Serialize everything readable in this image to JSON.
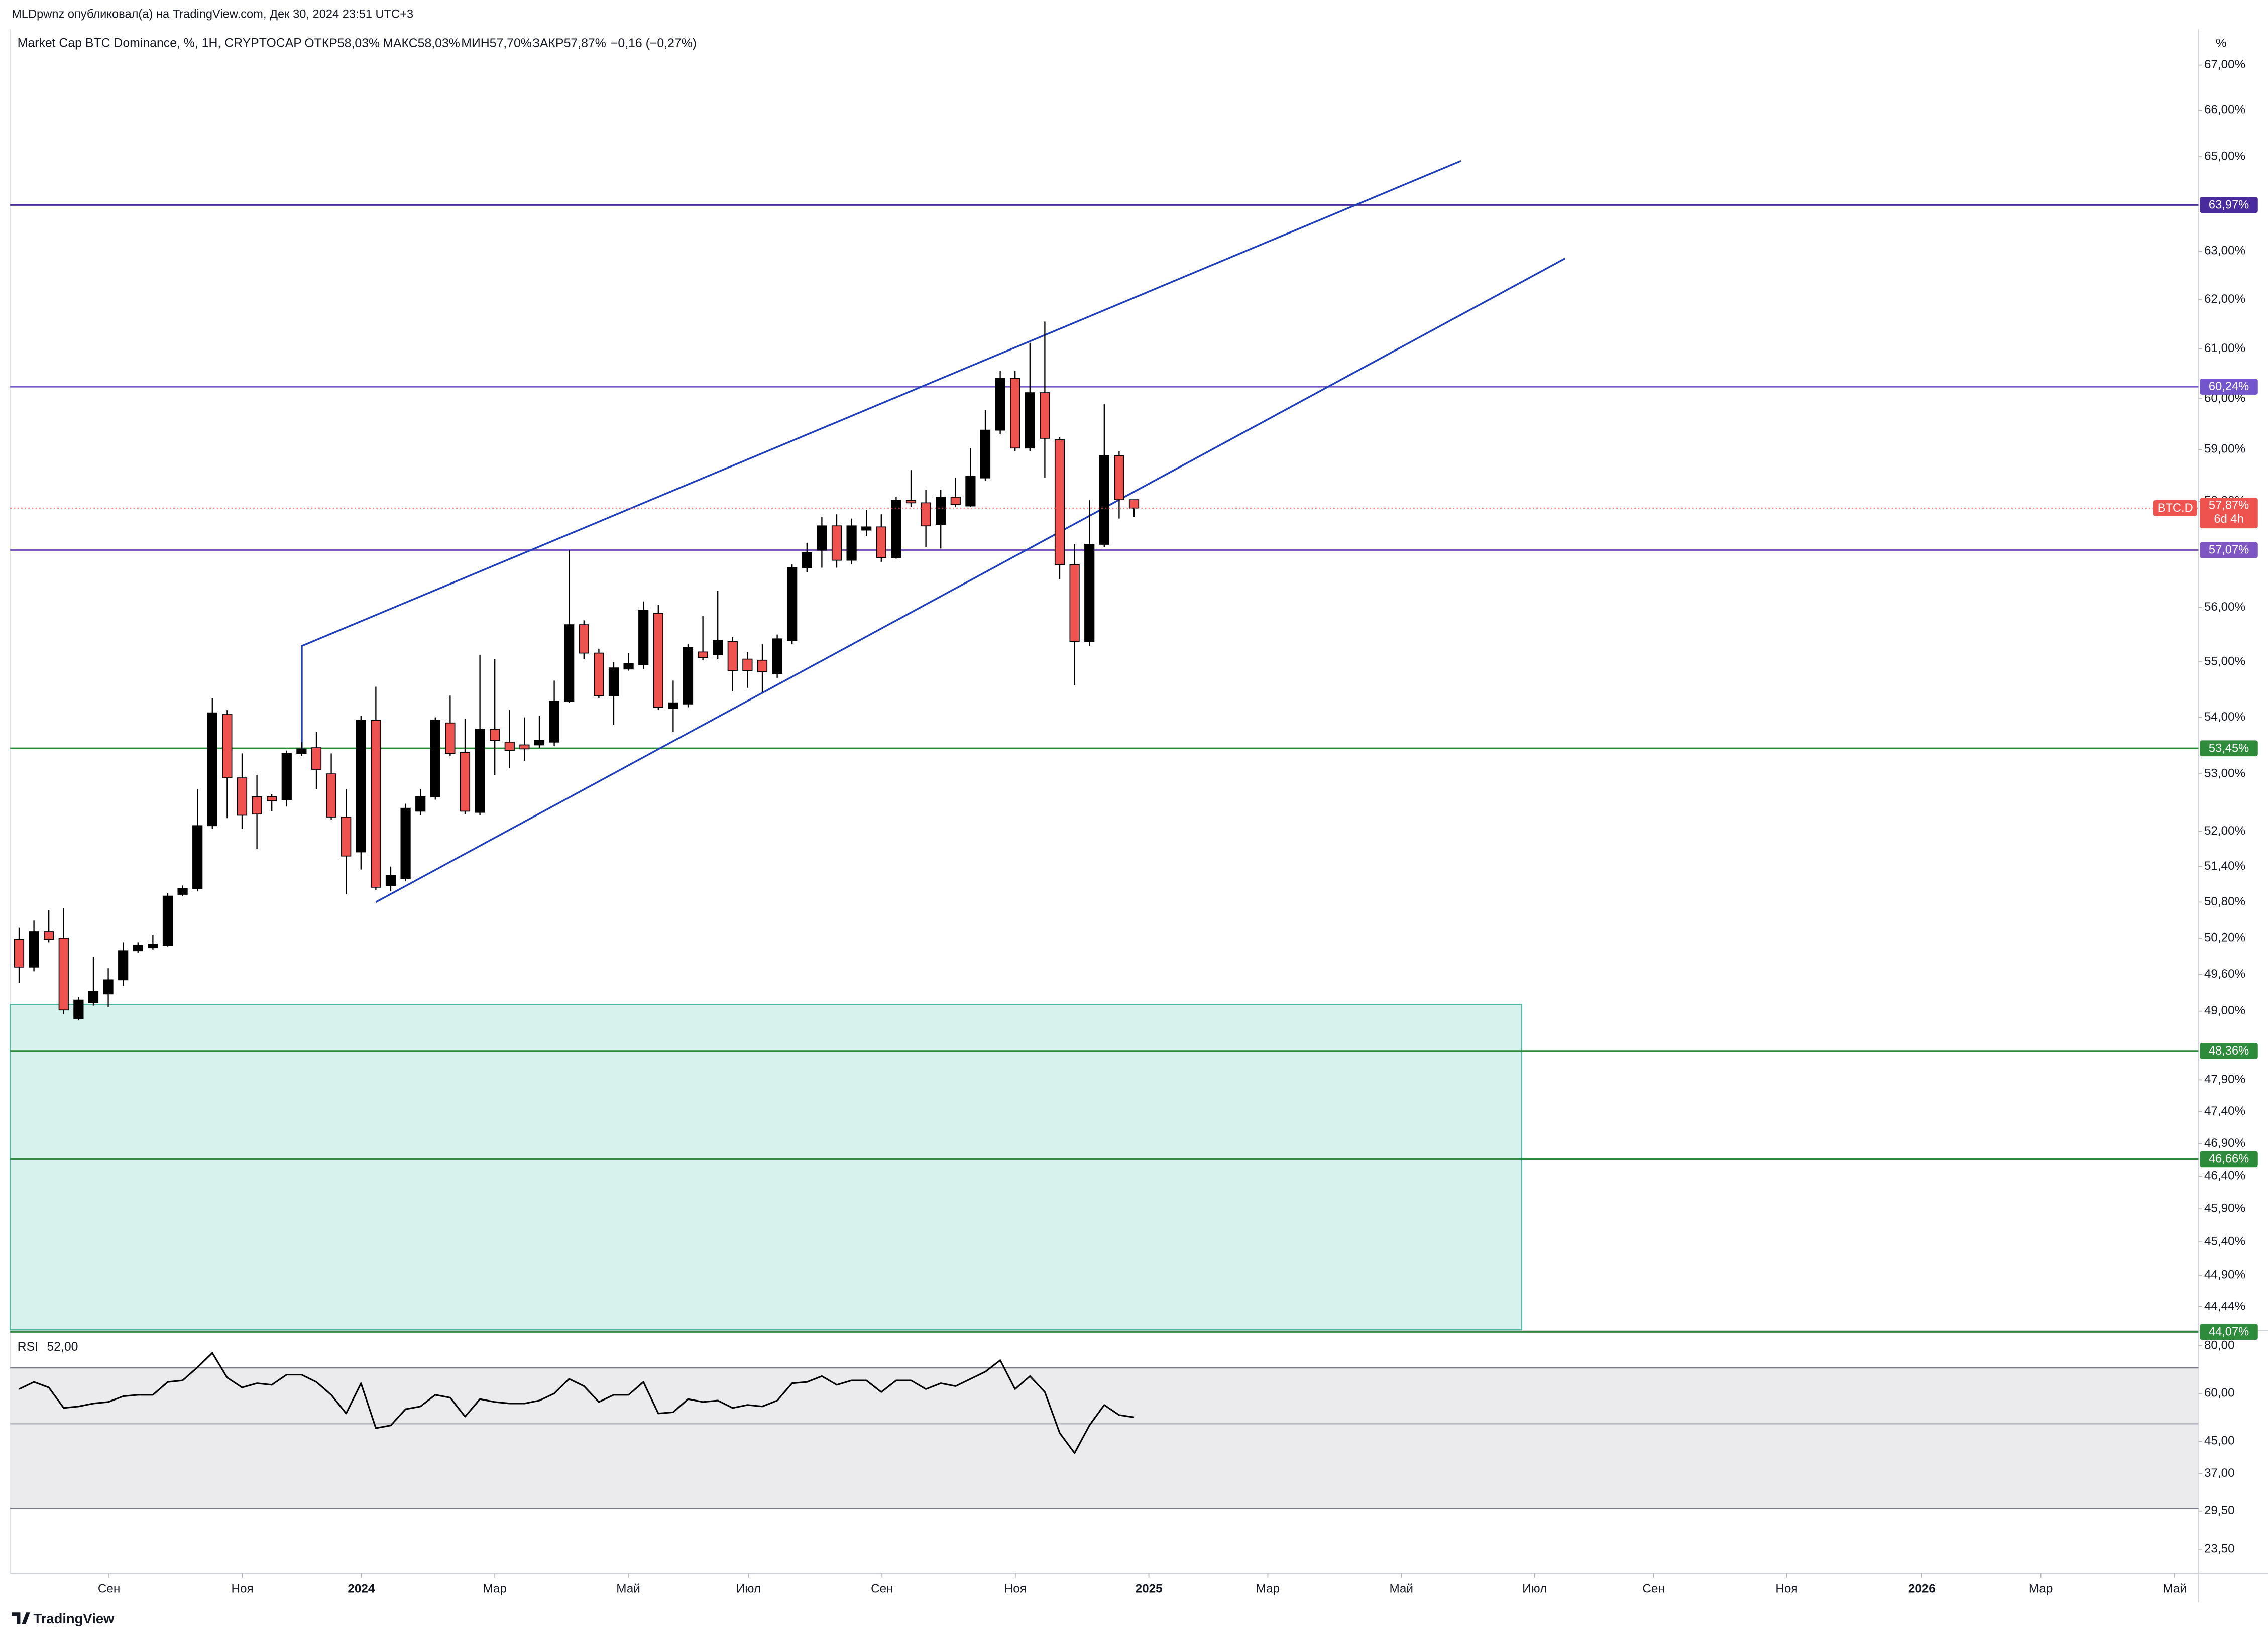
{
  "header": "MLDpwnz опубликовал(а) на TradingView.com, Дек 30, 2024 23:51 UTC+3",
  "branding": "TradingView",
  "chart_data": [
    {
      "type": "candlestick",
      "title": "Market Cap BTC Dominance, %, 1H, CRYPTOCAP",
      "ohlc_legend": [
        {
          "label": "ОТКР",
          "text": "58,03%"
        },
        {
          "label": "МАКС",
          "text": "58,03%"
        },
        {
          "label": "МИН",
          "text": "57,70%"
        },
        {
          "label": "ЗАКР",
          "text": "57,87%"
        },
        {
          "label": "",
          "text": "−0,16 (−0,27%)"
        }
      ],
      "axis_unit": "%",
      "log_scale": true,
      "ylim": [
        44.1,
        67.8
      ],
      "yticks": [
        {
          "value": 67,
          "label": "67,00%"
        },
        {
          "value": 66,
          "label": "66,00%"
        },
        {
          "value": 65,
          "label": "65,00%"
        },
        {
          "value": 63,
          "label": "63,00%"
        },
        {
          "value": 62,
          "label": "62,00%"
        },
        {
          "value": 61,
          "label": "61,00%"
        },
        {
          "value": 60,
          "label": "60,00%"
        },
        {
          "value": 59,
          "label": "59,00%"
        },
        {
          "value": 58,
          "label": "58,00%"
        },
        {
          "value": 56,
          "label": "56,00%"
        },
        {
          "value": 55,
          "label": "55,00%"
        },
        {
          "value": 54,
          "label": "54,00%"
        },
        {
          "value": 53,
          "label": "53,00%"
        },
        {
          "value": 52,
          "label": "52,00%"
        },
        {
          "value": 51.4,
          "label": "51,40%"
        },
        {
          "value": 50.8,
          "label": "50,80%"
        },
        {
          "value": 50.2,
          "label": "50,20%"
        },
        {
          "value": 49.6,
          "label": "49,60%"
        },
        {
          "value": 49,
          "label": "49,00%"
        },
        {
          "value": 47.9,
          "label": "47,90%"
        },
        {
          "value": 47.4,
          "label": "47,40%"
        },
        {
          "value": 46.9,
          "label": "46,90%"
        },
        {
          "value": 46.4,
          "label": "46,40%"
        },
        {
          "value": 45.9,
          "label": "45,90%"
        },
        {
          "value": 45.4,
          "label": "45,40%"
        },
        {
          "value": 44.9,
          "label": "44,90%"
        },
        {
          "value": 44.44,
          "label": "44,44%"
        }
      ],
      "xlim": [
        -0.6,
        146.6
      ],
      "xticks": [
        {
          "value": 6.05,
          "label": "Сен"
        },
        {
          "value": 15.02,
          "label": "Ноя"
        },
        {
          "value": 23.02,
          "label": "2024"
        },
        {
          "value": 32.0,
          "label": "Мар"
        },
        {
          "value": 40.98,
          "label": "Май"
        },
        {
          "value": 49.07,
          "label": "Июл"
        },
        {
          "value": 58.05,
          "label": "Сен"
        },
        {
          "value": 67.02,
          "label": "Ноя"
        },
        {
          "value": 76.0,
          "label": "2025"
        },
        {
          "value": 84.0,
          "label": "Мар"
        },
        {
          "value": 92.98,
          "label": "Май"
        },
        {
          "value": 101.95,
          "label": "Июл"
        },
        {
          "value": 109.95,
          "label": "Сен"
        },
        {
          "value": 118.9,
          "label": "Ноя"
        },
        {
          "value": 128.0,
          "label": "2026"
        },
        {
          "value": 136.0,
          "label": "Мар"
        },
        {
          "value": 145.0,
          "label": "Май"
        }
      ],
      "up_color": "#000000",
      "down_color": "#ef5350",
      "open": [
        50.18,
        49.72,
        50.3,
        50.2,
        48.88,
        49.14,
        49.28,
        49.51,
        49.99,
        50.04,
        50.08,
        50.93,
        51.03,
        52.1,
        54.05,
        52.93,
        52.6,
        52.6,
        52.55,
        53.36,
        53.46,
        53.0,
        52.25,
        51.65,
        53.95,
        51.08,
        51.2,
        52.35,
        52.6,
        53.9,
        53.38,
        52.33,
        53.79,
        53.56,
        53.51,
        53.51,
        53.56,
        54.29,
        55.68,
        55.16,
        54.39,
        54.87,
        54.95,
        55.89,
        54.16,
        54.24,
        55.18,
        55.13,
        55.37,
        55.05,
        55.03,
        54.79,
        55.39,
        56.74,
        57.07,
        57.53,
        56.88,
        57.45,
        57.51,
        56.93,
        58.02,
        57.97,
        57.56,
        58.08,
        57.91,
        58.45,
        59.38,
        60.41,
        59.03,
        60.12,
        59.19,
        56.8,
        55.37,
        57.18,
        58.88,
        58.03
      ],
      "high": [
        50.37,
        50.49,
        50.66,
        50.7,
        49.23,
        49.89,
        49.7,
        50.13,
        50.13,
        50.25,
        50.95,
        51.08,
        52.73,
        54.34,
        54.13,
        53.36,
        52.98,
        52.65,
        53.41,
        53.56,
        53.74,
        53.36,
        52.73,
        54.03,
        54.55,
        51.4,
        52.48,
        52.73,
        54.0,
        54.39,
        53.97,
        55.13,
        55.05,
        54.13,
        54.0,
        54.03,
        54.66,
        57.07,
        55.76,
        55.24,
        55.0,
        55.16,
        56.11,
        56.05,
        54.66,
        55.32,
        55.84,
        56.31,
        55.45,
        55.18,
        55.32,
        55.5,
        56.8,
        57.21,
        57.7,
        57.75,
        57.67,
        57.83,
        57.75,
        58.08,
        58.6,
        58.22,
        58.22,
        58.45,
        59.03,
        59.78,
        60.56,
        60.56,
        61.12,
        61.55,
        59.24,
        57.18,
        58.02,
        59.89,
        58.97,
        58.03
      ],
      "low": [
        49.46,
        49.65,
        50.13,
        48.95,
        48.85,
        49.09,
        49.07,
        49.41,
        49.96,
        50.01,
        50.06,
        50.9,
        50.98,
        52.05,
        52.23,
        52.05,
        51.7,
        52.35,
        52.43,
        53.31,
        52.73,
        52.2,
        50.93,
        51.35,
        51.0,
        50.98,
        51.15,
        52.28,
        52.55,
        53.31,
        52.3,
        52.28,
        52.98,
        53.1,
        53.23,
        53.46,
        53.49,
        54.26,
        55.05,
        54.34,
        53.87,
        54.84,
        54.87,
        54.13,
        53.74,
        54.18,
        55.03,
        55.05,
        54.47,
        54.53,
        54.45,
        54.71,
        55.32,
        56.66,
        56.74,
        56.74,
        56.8,
        57.34,
        56.85,
        56.91,
        57.89,
        57.13,
        57.1,
        57.89,
        57.89,
        58.39,
        59.3,
        58.97,
        58.97,
        58.45,
        56.52,
        54.58,
        55.29,
        57.13,
        57.67,
        57.7
      ],
      "close": [
        49.72,
        50.3,
        50.18,
        49.02,
        49.18,
        49.32,
        49.51,
        49.99,
        50.08,
        50.1,
        50.9,
        51.03,
        52.1,
        54.08,
        52.93,
        52.28,
        52.3,
        52.53,
        53.36,
        53.44,
        53.08,
        52.25,
        51.58,
        53.95,
        51.05,
        51.25,
        52.4,
        52.6,
        53.95,
        53.36,
        52.35,
        53.79,
        53.59,
        53.41,
        53.44,
        53.59,
        54.29,
        55.68,
        55.16,
        54.39,
        54.89,
        54.97,
        55.95,
        54.18,
        54.26,
        55.26,
        55.08,
        55.39,
        54.84,
        54.84,
        54.82,
        55.42,
        56.74,
        57.02,
        57.53,
        56.88,
        57.53,
        57.51,
        56.93,
        58.02,
        57.97,
        57.53,
        58.08,
        57.94,
        58.48,
        59.38,
        60.41,
        59.03,
        60.12,
        59.22,
        56.8,
        55.37,
        57.18,
        58.88,
        58.03,
        57.87
      ],
      "hlines": [
        {
          "value": 63.97,
          "label": "63,97%",
          "color": "#4a2b9e"
        },
        {
          "value": 60.24,
          "label": "60,24%",
          "color": "#7356cc"
        },
        {
          "value": 57.07,
          "label": "57,07%",
          "color": "#7e57c2"
        },
        {
          "value": 53.45,
          "label": "53,45%",
          "color": "#2e8b3c"
        },
        {
          "value": 48.36,
          "label": "48,36%",
          "color": "#2e8b3c"
        },
        {
          "value": 46.66,
          "label": "46,66%",
          "color": "#2e8b3c"
        },
        {
          "value": 44.07,
          "label": "44,07%",
          "color": "#2e8b3c"
        }
      ],
      "trendlines": [
        {
          "color": "#1f3fbf",
          "x": [
            19.02,
            19.02,
            97.0
          ],
          "y": [
            53.41,
            55.29,
            64.91
          ]
        },
        {
          "color": "#1f3fbf",
          "x": [
            24.0,
            104.0
          ],
          "y": [
            50.8,
            62.85
          ]
        }
      ],
      "zone": {
        "x": [
          -0.6,
          101.07
        ],
        "y": [
          44.1,
          49.11
        ],
        "color": "#d7f2ed",
        "border": "#4cb8a0"
      },
      "last_price": {
        "value": 57.87,
        "label": "57,87%",
        "symbol": "BTC.D",
        "countdown": "6d 4h",
        "color": "#ef5350"
      }
    },
    {
      "type": "line",
      "title": "RSI",
      "value_label": "52,00",
      "color": "#000000",
      "log_scale": true,
      "ylim": [
        20.3,
        87.3
      ],
      "yticks": [
        {
          "value": 80,
          "label": "80,00"
        },
        {
          "value": 60,
          "label": "60,00"
        },
        {
          "value": 45,
          "label": "45,00"
        },
        {
          "value": 37,
          "label": "37,00"
        },
        {
          "value": 29.5,
          "label": "29,50"
        },
        {
          "value": 23.5,
          "label": "23,50"
        }
      ],
      "levels": [
        70,
        50,
        30
      ],
      "band_color": "#ebebed",
      "values": [
        61.6,
        64.3,
        62.2,
        55.0,
        55.5,
        56.5,
        57.0,
        59.0,
        59.5,
        59.5,
        64.3,
        64.9,
        70.2,
        76.6,
        66.0,
        62.2,
        63.8,
        63.2,
        67.2,
        67.2,
        64.3,
        59.5,
        53.2,
        63.8,
        48.7,
        49.5,
        54.6,
        55.5,
        59.5,
        58.5,
        52.2,
        58.0,
        57.0,
        56.5,
        56.5,
        57.5,
        60.0,
        65.5,
        62.7,
        57.0,
        59.5,
        59.5,
        64.3,
        53.2,
        53.6,
        58.0,
        57.0,
        57.5,
        55.0,
        56.0,
        55.5,
        57.5,
        63.8,
        64.3,
        66.6,
        63.2,
        64.9,
        64.9,
        60.5,
        64.9,
        64.9,
        61.6,
        63.8,
        62.7,
        65.5,
        68.4,
        73.3,
        61.6,
        66.6,
        60.5,
        47.3,
        41.9,
        49.5,
        56.0,
        52.7,
        52.0
      ]
    }
  ]
}
